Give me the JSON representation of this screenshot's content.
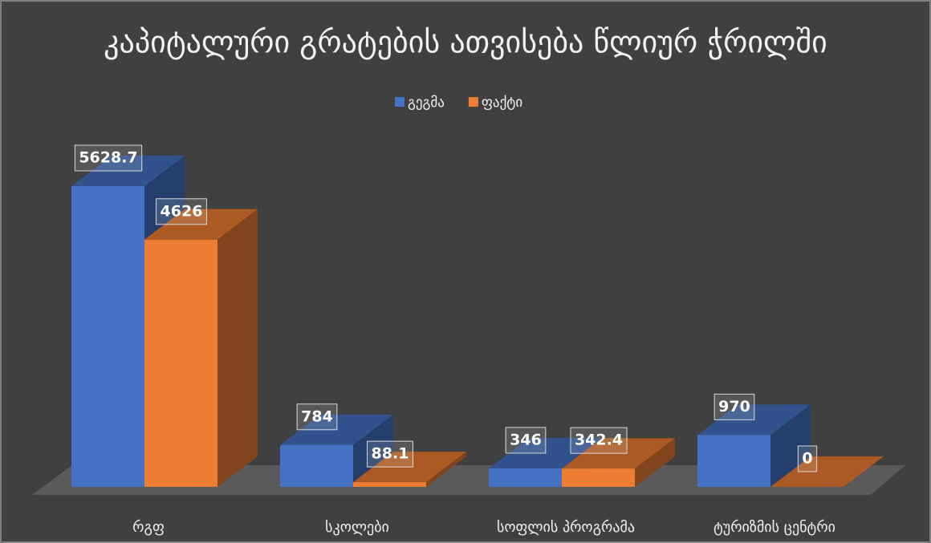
{
  "chart_data": {
    "type": "bar3d",
    "title": "კაპიტალური გრატების ათვისება წლიურ ჭრილში",
    "categories": [
      "რგფ",
      "სკოლები",
      "სოფლის პროგრამა",
      "ტურიზმის ცენტრი"
    ],
    "series": [
      {
        "name": "გეგმა",
        "color": "#4472c4",
        "values": [
          5628.7,
          784,
          346,
          970
        ]
      },
      {
        "name": "ფაქტი",
        "color": "#ed7d31",
        "values": [
          4626,
          88.1,
          342.4,
          0
        ]
      }
    ],
    "legend": "top"
  }
}
